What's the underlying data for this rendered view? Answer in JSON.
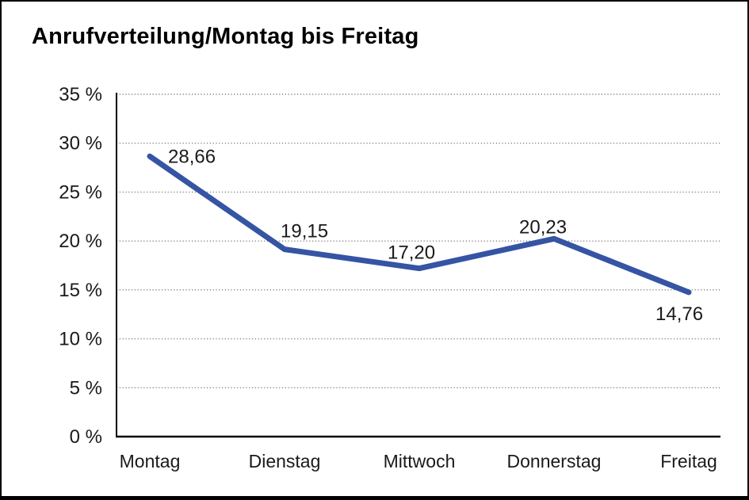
{
  "page": {
    "background_color": "#ffffff",
    "frame_border_color": "#000000"
  },
  "chart_data": {
    "type": "line",
    "title": "Anrufverteilung/Montag bis Freitag",
    "categories": [
      "Montag",
      "Dienstag",
      "Mittwoch",
      "Donnerstag",
      "Freitag"
    ],
    "series": [
      {
        "name": "Anrufverteilung",
        "values": [
          28.66,
          19.15,
          17.2,
          20.23,
          14.76
        ],
        "value_labels": [
          "28,66",
          "19,15",
          "17,20",
          "20,23",
          "14,76"
        ]
      }
    ],
    "xlabel": "",
    "ylabel": "",
    "ylim": [
      0,
      35
    ],
    "y_tick_step": 5,
    "y_tick_labels": [
      "0 %",
      "5 %",
      "10 %",
      "15 %",
      "20 %",
      "25 %",
      "30 %",
      "35 %"
    ],
    "grid": "horizontal-dotted",
    "legend": "none",
    "colors": {
      "line": "#3554a4",
      "grid": "#7f7f7f",
      "axis": "#000000",
      "text": "#1a1a1a"
    }
  }
}
